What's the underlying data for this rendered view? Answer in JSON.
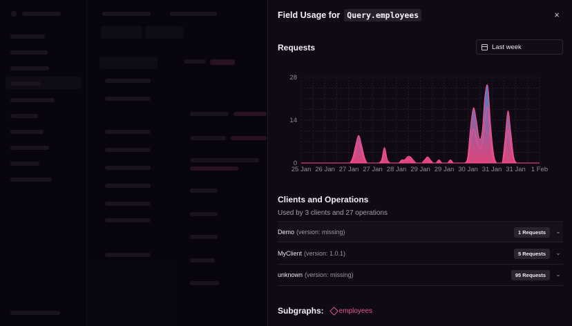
{
  "panel": {
    "title_prefix": "Field Usage for",
    "field": "Query.employees",
    "close_glyph": "×"
  },
  "requests": {
    "heading": "Requests",
    "range_label": "Last week"
  },
  "chart_data": {
    "type": "area",
    "title": "",
    "xlabel": "",
    "ylabel": "",
    "ylim": [
      0,
      28
    ],
    "yticks": [
      "28",
      "14",
      "0"
    ],
    "x_tick_labels": [
      "25 Jan",
      "26 Jan",
      "27 Jan",
      "27 Jan",
      "28 Jan",
      "29 Jan",
      "29 Jan",
      "30 Jan",
      "31 Jan",
      "31 Jan",
      "1 Feb"
    ],
    "grid": true,
    "series": [
      {
        "values": [
          0,
          0,
          0,
          0,
          0,
          0,
          0,
          0,
          0,
          0,
          0,
          0,
          0,
          0,
          0,
          0,
          0,
          0,
          2,
          6,
          9,
          6,
          2,
          0,
          0,
          0,
          0,
          0,
          1,
          5,
          1,
          0,
          0,
          0,
          0,
          1,
          1,
          2,
          2,
          1,
          0,
          0,
          0,
          1,
          2,
          1,
          0,
          0,
          1,
          0,
          0,
          0,
          1,
          0,
          0,
          0,
          0,
          0,
          2,
          12,
          18,
          14,
          8,
          10,
          22,
          25,
          12,
          3,
          0,
          0,
          0,
          8,
          17,
          10,
          2,
          0,
          0,
          0,
          0,
          0,
          0,
          0,
          0,
          0
        ]
      },
      {
        "values": [
          0,
          0,
          0,
          0,
          0,
          0,
          0,
          0,
          0,
          0,
          0,
          0,
          0,
          0,
          0,
          0,
          0,
          0,
          1,
          4,
          7,
          4,
          1,
          0,
          0,
          0,
          0,
          0,
          0,
          3,
          1,
          0,
          0,
          0,
          0,
          0,
          1,
          1,
          1,
          0,
          0,
          0,
          0,
          1,
          1,
          0,
          0,
          0,
          0,
          0,
          0,
          0,
          0,
          0,
          0,
          0,
          0,
          0,
          1,
          7,
          11,
          8,
          5,
          6,
          14,
          18,
          7,
          1,
          0,
          0,
          0,
          4,
          11,
          6,
          1,
          0,
          0,
          0,
          0,
          0,
          0,
          0,
          0,
          0
        ]
      }
    ],
    "colors": {
      "primary": "#3f8ad4",
      "accent": "#ff4f8e"
    }
  },
  "clients": {
    "heading": "Clients and Operations",
    "summary": "Used by 3 clients and 27 operations",
    "rows": [
      {
        "name": "Demo",
        "version": "(version: missing)",
        "requests": "1 Requests"
      },
      {
        "name": "MyClient",
        "version": "(version: 1.0.1)",
        "requests": "5 Requests"
      },
      {
        "name": "unknown",
        "version": "(version: missing)",
        "requests": "95 Requests"
      }
    ]
  },
  "subgraphs": {
    "label": "Subgraphs:",
    "items": [
      "employees"
    ]
  }
}
